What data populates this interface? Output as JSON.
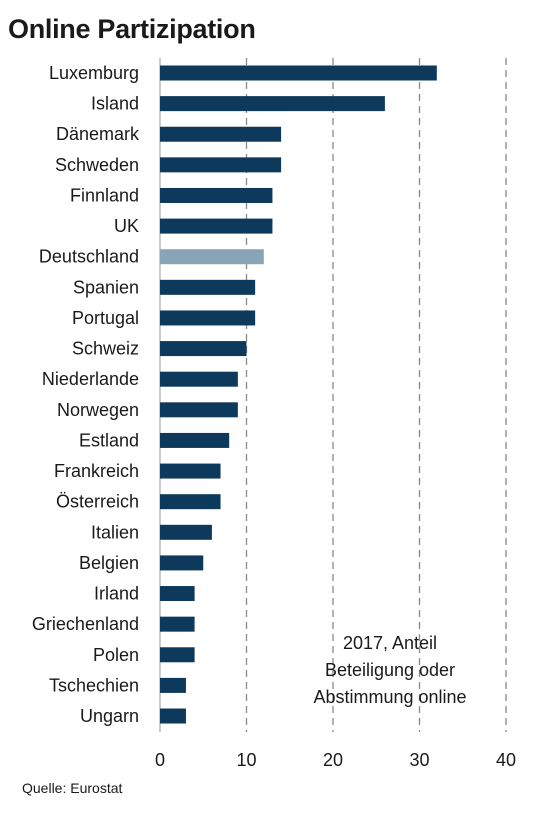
{
  "title": "Online Partizipation",
  "source": "Quelle: Eurostat",
  "annotation": [
    "2017, Anteil",
    "Beteiligung oder",
    "Abstimmung online"
  ],
  "colors": {
    "bar": "#0d3a5c",
    "highlight": "#8aa4b7",
    "grid": "#888888"
  },
  "chart_data": {
    "type": "bar",
    "orientation": "horizontal",
    "title": "Online Partizipation",
    "categories": [
      "Luxemburg",
      "Island",
      "Dänemark",
      "Schweden",
      "Finnland",
      "UK",
      "Deutschland",
      "Spanien",
      "Portugal",
      "Schweiz",
      "Niederlande",
      "Norwegen",
      "Estland",
      "Frankreich",
      "Österreich",
      "Italien",
      "Belgien",
      "Irland",
      "Griechenland",
      "Polen",
      "Tschechien",
      "Ungarn"
    ],
    "values": [
      32,
      26,
      14,
      14,
      13,
      13,
      12,
      11,
      11,
      10,
      9,
      9,
      8,
      7,
      7,
      6,
      5,
      4,
      4,
      4,
      3,
      3
    ],
    "highlight": "Deutschland",
    "xlim": [
      0,
      40
    ],
    "xticks": [
      0,
      10,
      20,
      30,
      40
    ],
    "grid": "vertical dashed",
    "xlabel": "",
    "ylabel": ""
  }
}
